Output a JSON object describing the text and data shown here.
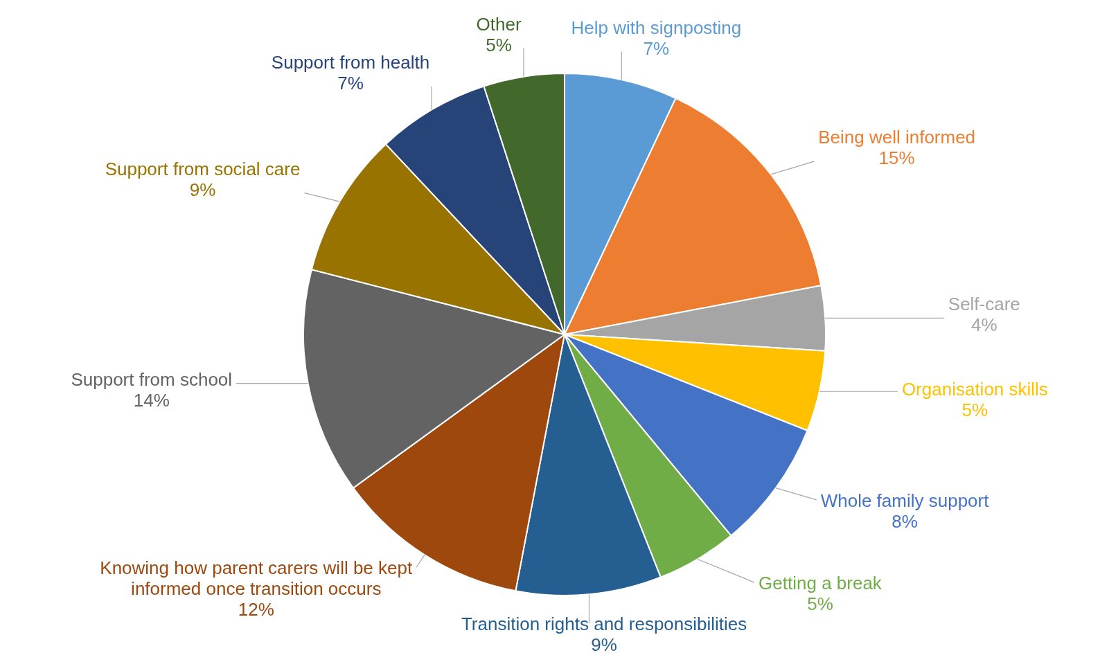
{
  "chart_data": {
    "type": "pie",
    "categories": [
      "Help with signposting",
      "Being well informed",
      "Self-care",
      "Organisation skills",
      "Whole family support",
      "Getting a break",
      "Transition rights and responsibilities",
      "Knowing how parent carers will be kept informed once transition occurs",
      "Support from school",
      "Support from social care",
      "Support from health",
      "Other"
    ],
    "values": [
      7,
      15,
      4,
      5,
      8,
      5,
      9,
      12,
      14,
      9,
      7,
      5
    ],
    "value_labels": [
      "7%",
      "15%",
      "4%",
      "5%",
      "8%",
      "5%",
      "9%",
      "12%",
      "14%",
      "9%",
      "7%",
      "5%"
    ],
    "colors": [
      "#5b9bd5",
      "#ed7d31",
      "#a5a5a5",
      "#ffc000",
      "#4472c4",
      "#70ad47",
      "#255e91",
      "#9e480e",
      "#636363",
      "#997300",
      "#264478",
      "#43682b"
    ]
  }
}
